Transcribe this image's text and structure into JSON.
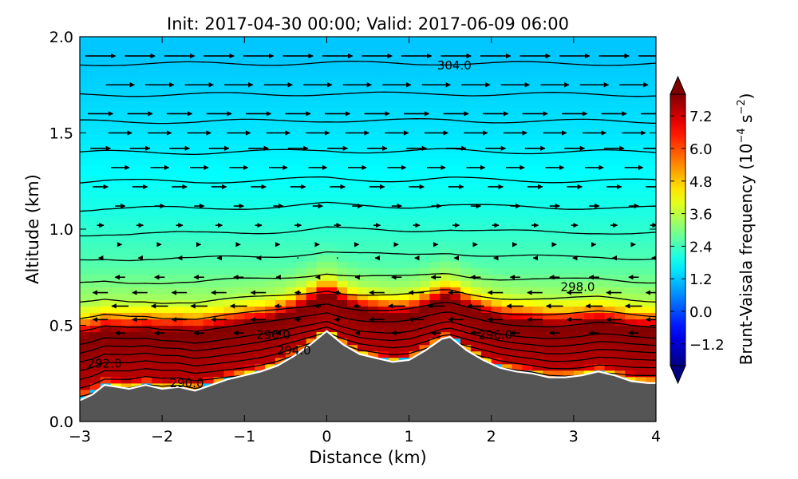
{
  "chart_data": {
    "type": "heatmap",
    "title": "Init: 2017-04-30 00:00; Valid: 2017-06-09 06:00",
    "xlabel": "Distance (km)",
    "ylabel": "Altitude (km)",
    "xlim": [
      -3,
      4
    ],
    "ylim": [
      0,
      2
    ],
    "x_ticks": [
      -3,
      -2,
      -1,
      0,
      1,
      2,
      3,
      4
    ],
    "y_ticks": [
      0.0,
      0.5,
      1.0,
      1.5,
      2.0
    ],
    "colorbar": {
      "label": "Brunt-Vaisala frequency (10",
      "label_exponent": "−4",
      "label_units": " s",
      "label_units_exponent": "−2",
      "label_close": ")",
      "range": [
        -2.0,
        8.0
      ],
      "ticks": [
        "−1.2",
        "0.0",
        "1.2",
        "2.4",
        "3.6",
        "4.8",
        "6.0",
        "7.2"
      ],
      "tick_values": [
        -1.2,
        0.0,
        1.2,
        2.4,
        3.6,
        4.8,
        6.0,
        7.2
      ],
      "colormap": "jet"
    },
    "terrain": {
      "color": "#555555",
      "outline": "#ffffff",
      "profile": [
        [
          -3.0,
          0.11
        ],
        [
          -2.85,
          0.14
        ],
        [
          -2.7,
          0.19
        ],
        [
          -2.55,
          0.18
        ],
        [
          -2.4,
          0.17
        ],
        [
          -2.2,
          0.19
        ],
        [
          -2.0,
          0.17
        ],
        [
          -1.8,
          0.18
        ],
        [
          -1.6,
          0.16
        ],
        [
          -1.4,
          0.19
        ],
        [
          -1.2,
          0.22
        ],
        [
          -1.0,
          0.24
        ],
        [
          -0.8,
          0.26
        ],
        [
          -0.6,
          0.29
        ],
        [
          -0.4,
          0.34
        ],
        [
          -0.2,
          0.4
        ],
        [
          0.0,
          0.47
        ],
        [
          0.2,
          0.4
        ],
        [
          0.4,
          0.35
        ],
        [
          0.6,
          0.33
        ],
        [
          0.8,
          0.31
        ],
        [
          1.0,
          0.32
        ],
        [
          1.2,
          0.37
        ],
        [
          1.4,
          0.43
        ],
        [
          1.5,
          0.44
        ],
        [
          1.7,
          0.37
        ],
        [
          1.9,
          0.32
        ],
        [
          2.1,
          0.28
        ],
        [
          2.3,
          0.26
        ],
        [
          2.5,
          0.25
        ],
        [
          2.7,
          0.23
        ],
        [
          2.9,
          0.23
        ],
        [
          3.1,
          0.24
        ],
        [
          3.3,
          0.26
        ],
        [
          3.5,
          0.24
        ],
        [
          3.7,
          0.21
        ],
        [
          3.9,
          0.2
        ],
        [
          4.0,
          0.2
        ]
      ]
    },
    "field_layers": [
      {
        "above_km": 0.0,
        "N": 4.2
      },
      {
        "above_km": 0.06,
        "N": 7.4
      },
      {
        "above_km": 0.4,
        "N": 8.0
      },
      {
        "above_km": 0.53,
        "N": 4.4
      },
      {
        "above_km": 0.62,
        "N": 3.4
      },
      {
        "above_km": 0.8,
        "N": 2.6
      },
      {
        "above_km": 1.1,
        "N": 2.0
      },
      {
        "above_km": 1.5,
        "N": 1.5
      },
      {
        "above_km": 1.9,
        "N": 1.2
      },
      {
        "above_km": 2.0,
        "N": 1.2
      }
    ],
    "theta_contours": {
      "levels_km": [
        0.19,
        0.23,
        0.27,
        0.31,
        0.35,
        0.39,
        0.43,
        0.49,
        0.55,
        0.63,
        0.73,
        0.85,
        0.98,
        1.11,
        1.25,
        1.4,
        1.56,
        1.7,
        1.86
      ],
      "labels": [
        {
          "text": "290.0",
          "x": -1.7,
          "y": 0.2
        },
        {
          "text": "292.0",
          "x": -2.7,
          "y": 0.3
        },
        {
          "text": "294.0",
          "x": -0.4,
          "y": 0.37
        },
        {
          "text": "296.0",
          "x": -0.65,
          "y": 0.45
        },
        {
          "text": "296.0",
          "x": 2.05,
          "y": 0.45
        },
        {
          "text": "298.0",
          "x": 3.05,
          "y": 0.7
        },
        {
          "text": "304.0",
          "x": 1.55,
          "y": 1.85
        }
      ]
    },
    "wind_vectors": {
      "x_spacing_km": 0.48,
      "rows": [
        {
          "z": 1.9,
          "u": 0.9
        },
        {
          "z": 1.75,
          "u": 0.85
        },
        {
          "z": 1.6,
          "u": 0.75
        },
        {
          "z": 1.5,
          "u": 0.7
        },
        {
          "z": 1.42,
          "u": 0.6
        },
        {
          "z": 1.32,
          "u": 0.55
        },
        {
          "z": 1.22,
          "u": 0.45
        },
        {
          "z": 1.12,
          "u": 0.3
        },
        {
          "z": 1.02,
          "u": 0.2
        },
        {
          "z": 0.92,
          "u": 0.1
        },
        {
          "z": 0.85,
          "u": -0.1
        },
        {
          "z": 0.75,
          "u": -0.3
        },
        {
          "z": 0.67,
          "u": -0.45
        },
        {
          "z": 0.6,
          "u": -0.5
        },
        {
          "z": 0.53,
          "u": -0.45
        },
        {
          "z": 0.46,
          "u": -0.3
        }
      ]
    }
  }
}
